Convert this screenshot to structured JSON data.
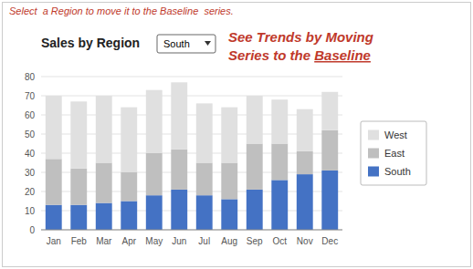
{
  "chart_data": {
    "type": "bar",
    "stacked": true,
    "title": "Sales by Region",
    "categories": [
      "Jan",
      "Feb",
      "Mar",
      "Apr",
      "May",
      "Jun",
      "Jul",
      "Aug",
      "Sep",
      "Oct",
      "Nov",
      "Dec"
    ],
    "series": [
      {
        "name": "South",
        "color": "#4472C4",
        "values": [
          13,
          13,
          14,
          15,
          18,
          21,
          18,
          16,
          21,
          26,
          29,
          31
        ]
      },
      {
        "name": "East",
        "color": "#BFBFBF",
        "values": [
          24,
          19,
          21,
          15,
          22,
          21,
          17,
          19,
          24,
          19,
          12,
          21
        ]
      },
      {
        "name": "West",
        "color": "#E0E0E0",
        "values": [
          33,
          35,
          35,
          34,
          33,
          35,
          31,
          29,
          25,
          23,
          22,
          20
        ]
      }
    ],
    "ylim": [
      0,
      80
    ],
    "yticks": [
      0,
      10,
      20,
      30,
      40,
      50,
      60,
      70,
      80
    ],
    "grid": true,
    "legend": "right",
    "annotations": [
      "Select  a Region to move it to the Baseline  series.",
      "South",
      "See Trends by Moving",
      "Series to the ",
      "Baseline"
    ]
  }
}
